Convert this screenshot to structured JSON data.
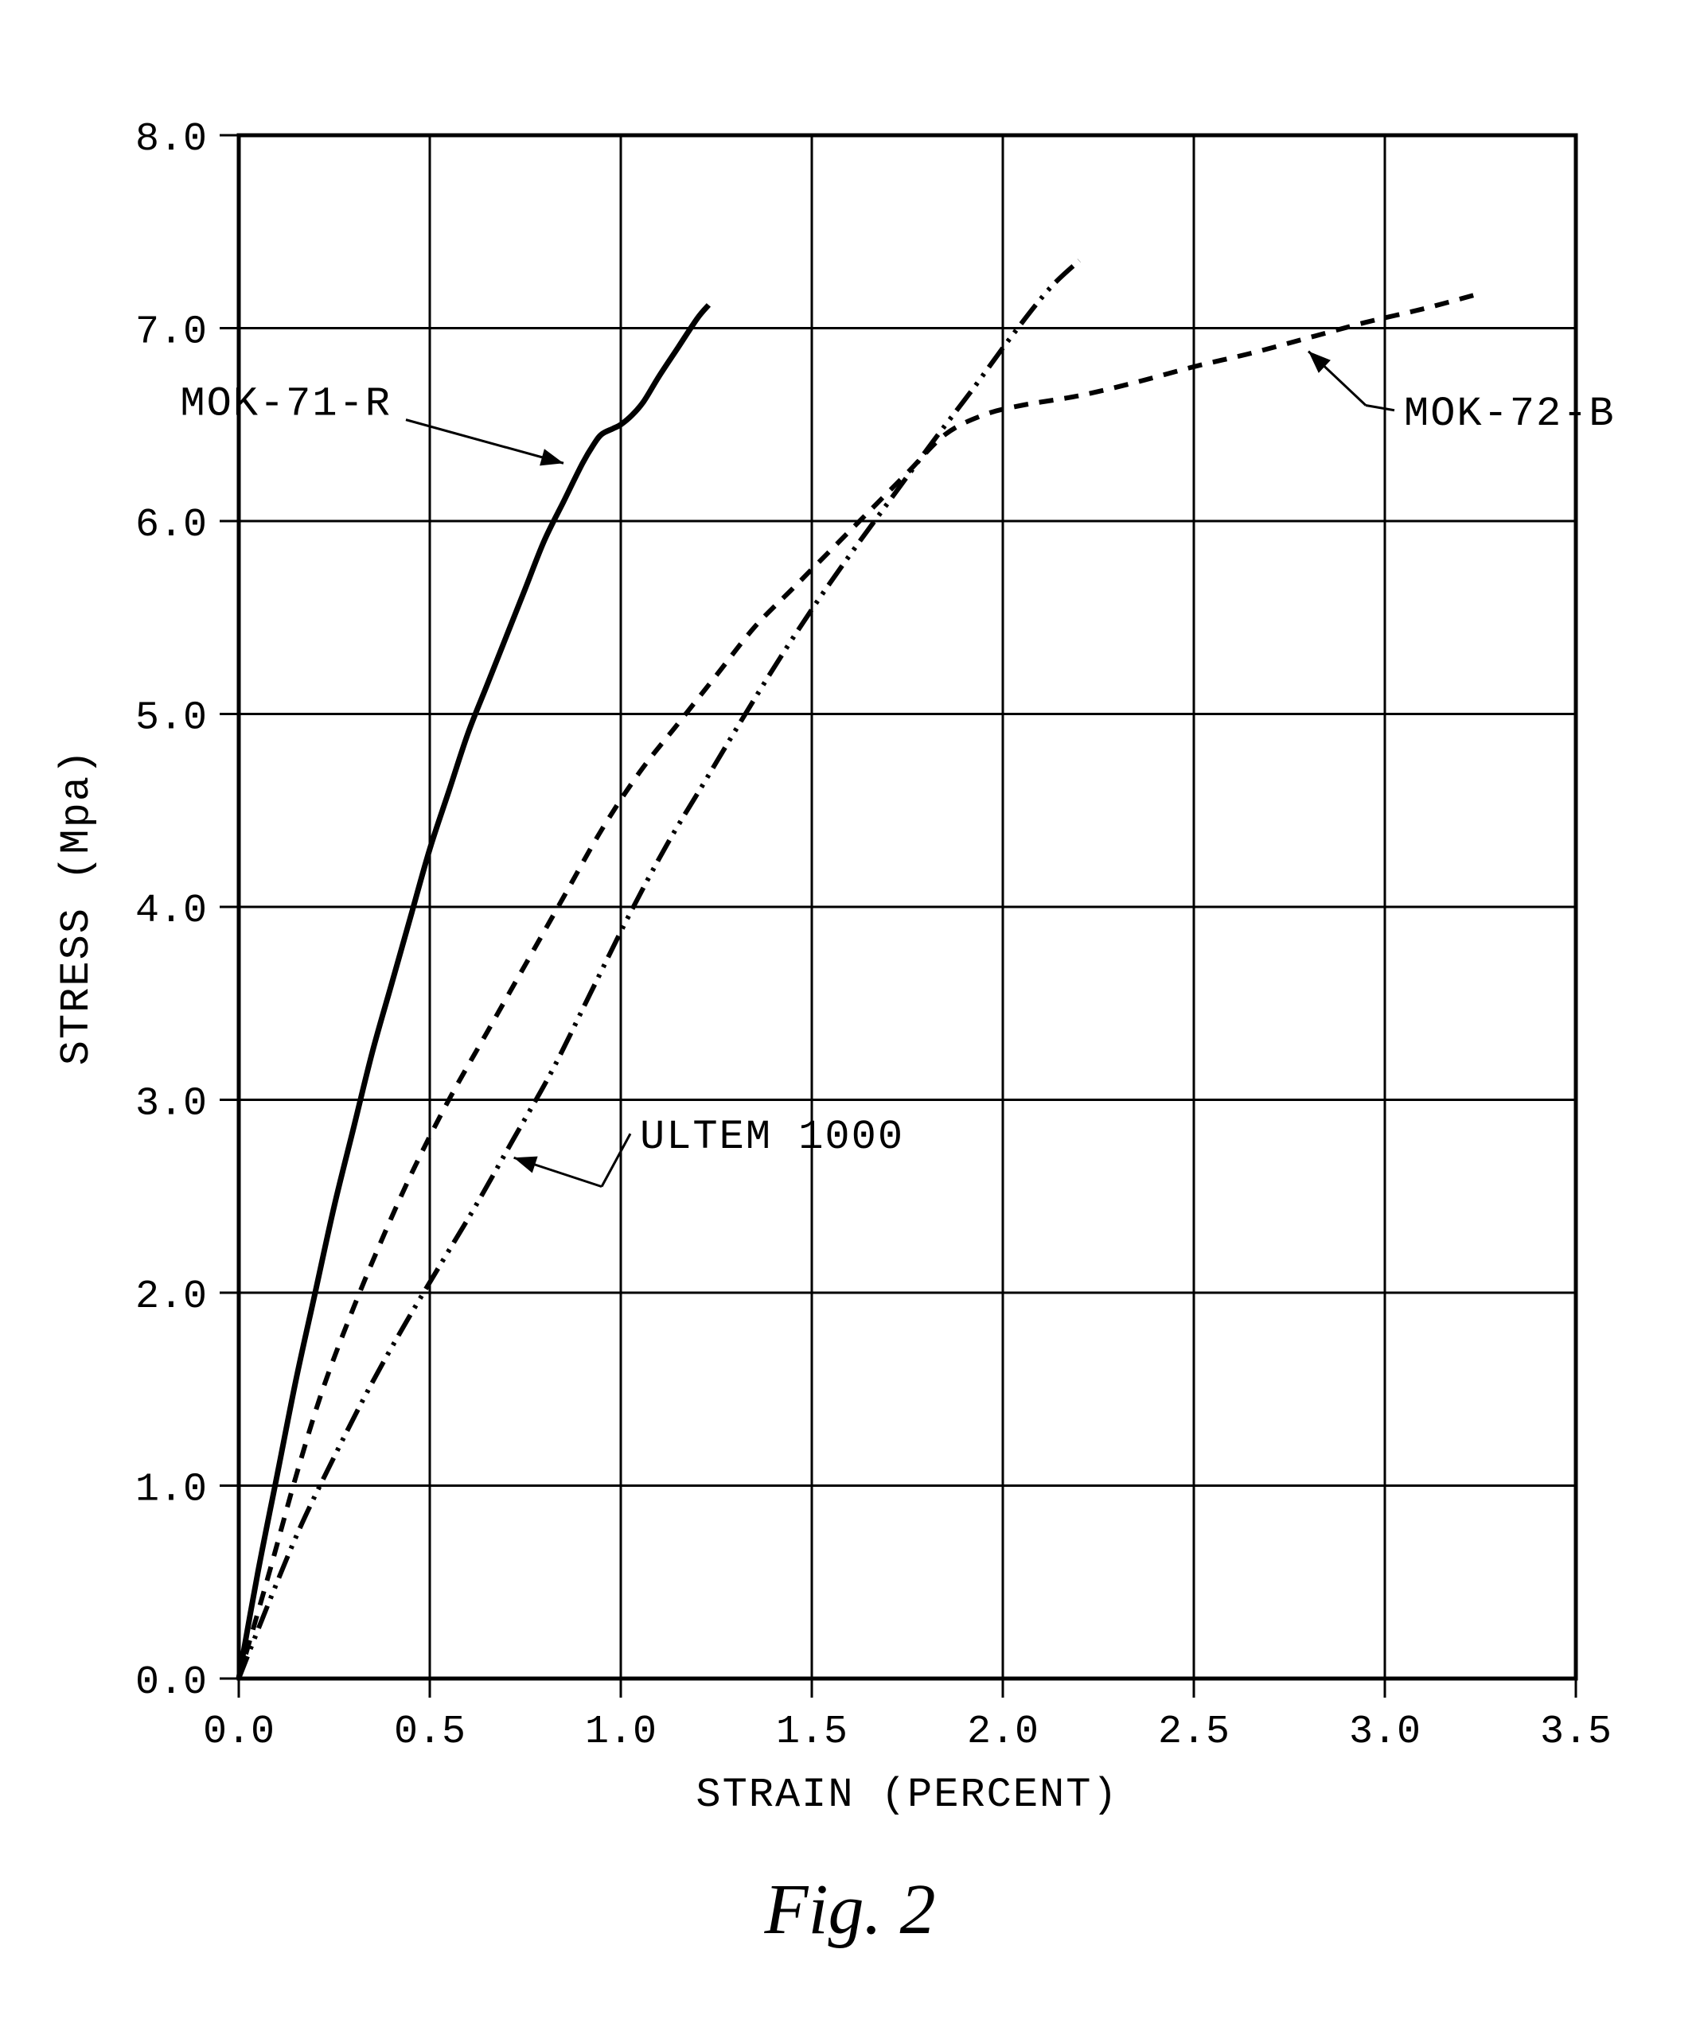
{
  "figure": {
    "caption": "Fig. 2",
    "background_color": "#ffffff",
    "axis_color": "#000000",
    "grid_color": "#000000",
    "text_color": "#000000",
    "font_family_axes": "Courier New, monospace",
    "font_family_caption": "Times New Roman, serif",
    "tick_fontsize": 50,
    "axis_title_fontsize": 52,
    "series_label_fontsize": 52,
    "caption_fontsize": 90,
    "plot_border_width": 5,
    "grid_line_width": 3,
    "x_axis": {
      "label": "STRAIN (PERCENT)",
      "min": 0.0,
      "max": 3.5,
      "tick_step": 0.5,
      "tick_labels": [
        "0.0",
        "0.5",
        "1.0",
        "1.5",
        "2.0",
        "2.5",
        "3.0",
        "3.5"
      ]
    },
    "y_axis": {
      "label": "STRESS (Mpa)",
      "min": 0.0,
      "max": 8.0,
      "tick_step": 1.0,
      "tick_labels": [
        "0.0",
        "1.0",
        "2.0",
        "3.0",
        "4.0",
        "5.0",
        "6.0",
        "7.0",
        "8.0"
      ]
    },
    "series": [
      {
        "name": "MOK-71-R",
        "label": "MOK-71-R",
        "line_style": "solid",
        "line_width": 7,
        "color": "#000000",
        "label_pos": {
          "text_x": 0.4,
          "text_y": 6.55,
          "arrow_to_x": 0.85,
          "arrow_to_y": 6.3
        },
        "points": [
          [
            0.0,
            0.0
          ],
          [
            0.05,
            0.55
          ],
          [
            0.1,
            1.05
          ],
          [
            0.15,
            1.55
          ],
          [
            0.2,
            2.0
          ],
          [
            0.25,
            2.45
          ],
          [
            0.3,
            2.85
          ],
          [
            0.35,
            3.25
          ],
          [
            0.4,
            3.6
          ],
          [
            0.45,
            3.95
          ],
          [
            0.5,
            4.3
          ],
          [
            0.55,
            4.6
          ],
          [
            0.6,
            4.9
          ],
          [
            0.65,
            5.15
          ],
          [
            0.7,
            5.4
          ],
          [
            0.75,
            5.65
          ],
          [
            0.8,
            5.9
          ],
          [
            0.85,
            6.1
          ],
          [
            0.9,
            6.3
          ],
          [
            0.93,
            6.4
          ],
          [
            0.95,
            6.45
          ],
          [
            0.98,
            6.48
          ],
          [
            1.0,
            6.5
          ],
          [
            1.03,
            6.55
          ],
          [
            1.06,
            6.62
          ],
          [
            1.1,
            6.75
          ],
          [
            1.15,
            6.9
          ],
          [
            1.2,
            7.05
          ],
          [
            1.23,
            7.12
          ]
        ]
      },
      {
        "name": "MOK-72-B",
        "label": "MOK-72-B",
        "line_style": "dashed",
        "dash_pattern": "18 14",
        "line_width": 6,
        "color": "#000000",
        "label_pos": {
          "text_x": 3.05,
          "text_y": 6.5,
          "arrow_to_x": 2.8,
          "arrow_to_y": 6.88,
          "leader_bend_x": 2.95,
          "leader_bend_y": 6.6
        },
        "points": [
          [
            0.0,
            0.0
          ],
          [
            0.08,
            0.55
          ],
          [
            0.15,
            1.05
          ],
          [
            0.22,
            1.5
          ],
          [
            0.3,
            1.92
          ],
          [
            0.38,
            2.3
          ],
          [
            0.46,
            2.65
          ],
          [
            0.55,
            3.0
          ],
          [
            0.65,
            3.35
          ],
          [
            0.75,
            3.7
          ],
          [
            0.85,
            4.05
          ],
          [
            0.95,
            4.4
          ],
          [
            1.05,
            4.7
          ],
          [
            1.15,
            4.95
          ],
          [
            1.25,
            5.2
          ],
          [
            1.35,
            5.45
          ],
          [
            1.45,
            5.65
          ],
          [
            1.55,
            5.85
          ],
          [
            1.65,
            6.05
          ],
          [
            1.75,
            6.25
          ],
          [
            1.85,
            6.45
          ],
          [
            1.95,
            6.55
          ],
          [
            2.05,
            6.6
          ],
          [
            2.2,
            6.65
          ],
          [
            2.35,
            6.72
          ],
          [
            2.5,
            6.8
          ],
          [
            2.65,
            6.87
          ],
          [
            2.8,
            6.95
          ],
          [
            2.95,
            7.03
          ],
          [
            3.1,
            7.1
          ],
          [
            3.25,
            7.18
          ]
        ]
      },
      {
        "name": "ULTEM-1000",
        "label": "ULTEM 1000",
        "line_style": "dash-dot-dot",
        "dash_pattern": "30 10 4 10 4 10",
        "line_width": 6,
        "color": "#000000",
        "label_pos": {
          "text_x": 1.05,
          "text_y": 2.75,
          "arrow_to_x": 0.72,
          "arrow_to_y": 2.7,
          "leader_bend_x": 0.95,
          "leader_bend_y": 2.55
        },
        "points": [
          [
            0.0,
            0.0
          ],
          [
            0.08,
            0.4
          ],
          [
            0.16,
            0.78
          ],
          [
            0.25,
            1.15
          ],
          [
            0.34,
            1.5
          ],
          [
            0.43,
            1.82
          ],
          [
            0.52,
            2.12
          ],
          [
            0.62,
            2.45
          ],
          [
            0.72,
            2.8
          ],
          [
            0.82,
            3.15
          ],
          [
            0.92,
            3.55
          ],
          [
            1.02,
            3.95
          ],
          [
            1.12,
            4.32
          ],
          [
            1.22,
            4.65
          ],
          [
            1.32,
            4.98
          ],
          [
            1.42,
            5.3
          ],
          [
            1.52,
            5.6
          ],
          [
            1.62,
            5.88
          ],
          [
            1.72,
            6.15
          ],
          [
            1.82,
            6.42
          ],
          [
            1.92,
            6.68
          ],
          [
            2.02,
            6.95
          ],
          [
            2.12,
            7.2
          ],
          [
            2.2,
            7.35
          ]
        ]
      }
    ]
  }
}
